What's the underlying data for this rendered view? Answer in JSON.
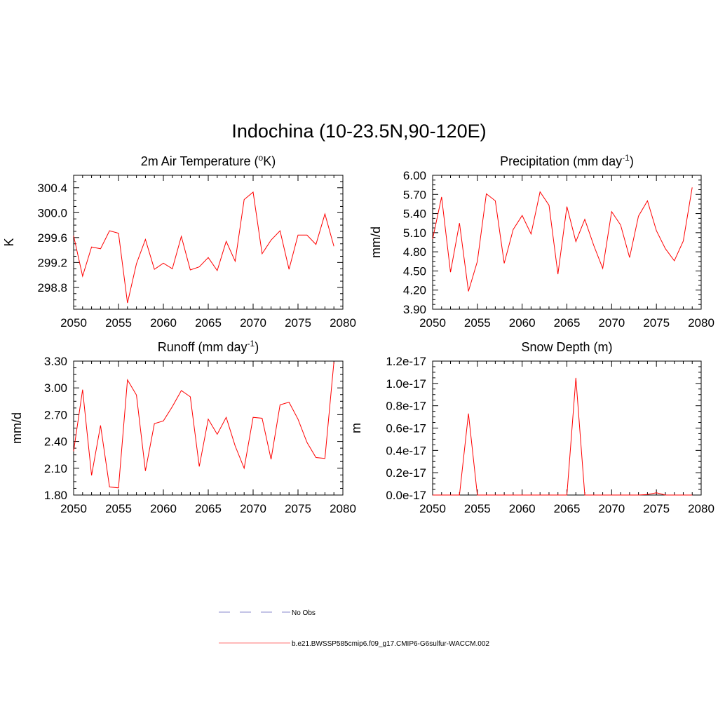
{
  "figure": {
    "title": "Indochina (10-23.5N,90-120E)"
  },
  "colors": {
    "series": "#ff0000",
    "no_obs": "#a0a0d8",
    "legend_model": "#ff9090",
    "axis": "#000000"
  },
  "legend": {
    "entries": [
      {
        "label": "No Obs",
        "style": "dashed",
        "color": "#a0a0d8"
      },
      {
        "label": "b.e21.BWSSP585cmip6.f09_g17.CMIP6-G6sulfur-WACCM.002",
        "style": "solid",
        "color": "#ff9090"
      }
    ]
  },
  "chart_data": [
    {
      "type": "line",
      "id": "temp",
      "title": "2m Air Temperature (",
      "title_sup": "o",
      "title_after": "K)",
      "ylabel": "K",
      "xlim": [
        2050,
        2080
      ],
      "ylim": [
        298.45,
        300.6
      ],
      "x_ticks": [
        2050,
        2055,
        2060,
        2065,
        2070,
        2075,
        2080
      ],
      "y_ticks": [
        298.8,
        299.2,
        299.6,
        300.0,
        300.4
      ],
      "y_tick_labels": [
        "298.8",
        "299.2",
        "299.6",
        "300.0",
        "300.4"
      ],
      "x": [
        2050,
        2051,
        2052,
        2053,
        2054,
        2055,
        2056,
        2057,
        2058,
        2059,
        2060,
        2061,
        2062,
        2063,
        2064,
        2065,
        2066,
        2067,
        2068,
        2069,
        2070,
        2071,
        2072,
        2073,
        2074,
        2075,
        2076,
        2077,
        2078,
        2079
      ],
      "values": [
        299.63,
        298.98,
        299.45,
        299.42,
        299.71,
        299.67,
        298.55,
        299.18,
        299.57,
        299.09,
        299.19,
        299.1,
        299.62,
        299.08,
        299.13,
        299.28,
        299.07,
        299.54,
        299.22,
        300.21,
        300.33,
        299.34,
        299.56,
        299.71,
        299.09,
        299.64,
        299.64,
        299.49,
        299.98,
        299.46
      ]
    },
    {
      "type": "line",
      "id": "precip",
      "title": "Precipitation (mm day",
      "title_sup": "-1",
      "title_after": ")",
      "ylabel": "mm/d",
      "xlim": [
        2050,
        2080
      ],
      "ylim": [
        3.9,
        6.0
      ],
      "x_ticks": [
        2050,
        2055,
        2060,
        2065,
        2070,
        2075,
        2080
      ],
      "y_ticks": [
        3.9,
        4.2,
        4.5,
        4.8,
        5.1,
        5.4,
        5.7,
        6.0
      ],
      "y_tick_labels": [
        "3.90",
        "4.20",
        "4.50",
        "4.80",
        "5.10",
        "5.40",
        "5.70",
        "6.00"
      ],
      "x": [
        2050,
        2051,
        2052,
        2053,
        2054,
        2055,
        2056,
        2057,
        2058,
        2059,
        2060,
        2061,
        2062,
        2063,
        2064,
        2065,
        2066,
        2067,
        2068,
        2069,
        2070,
        2071,
        2072,
        2073,
        2074,
        2075,
        2076,
        2077,
        2078,
        2079
      ],
      "values": [
        5.0,
        5.66,
        4.48,
        5.25,
        4.18,
        4.65,
        5.71,
        5.6,
        4.62,
        5.15,
        5.37,
        5.08,
        5.74,
        5.53,
        4.45,
        5.51,
        4.96,
        5.31,
        4.9,
        4.54,
        5.43,
        5.22,
        4.71,
        5.36,
        5.6,
        5.13,
        4.85,
        4.66,
        4.97,
        5.81
      ]
    },
    {
      "type": "line",
      "id": "runoff",
      "title": "Runoff (mm day",
      "title_sup": "-1",
      "title_after": ")",
      "ylabel": "mm/d",
      "xlim": [
        2050,
        2080
      ],
      "ylim": [
        1.8,
        3.3
      ],
      "x_ticks": [
        2050,
        2055,
        2060,
        2065,
        2070,
        2075,
        2080
      ],
      "y_ticks": [
        1.8,
        2.1,
        2.4,
        2.7,
        3.0,
        3.3
      ],
      "y_tick_labels": [
        "1.80",
        "2.10",
        "2.40",
        "2.70",
        "3.00",
        "3.30"
      ],
      "x": [
        2050,
        2051,
        2052,
        2053,
        2054,
        2055,
        2056,
        2057,
        2058,
        2059,
        2060,
        2061,
        2062,
        2063,
        2064,
        2065,
        2066,
        2067,
        2068,
        2069,
        2070,
        2071,
        2072,
        2073,
        2074,
        2075,
        2076,
        2077,
        2078,
        2079
      ],
      "values": [
        2.29,
        2.98,
        2.02,
        2.58,
        1.89,
        1.88,
        3.09,
        2.92,
        2.07,
        2.6,
        2.63,
        2.79,
        2.97,
        2.9,
        2.12,
        2.65,
        2.48,
        2.67,
        2.35,
        2.1,
        2.67,
        2.66,
        2.2,
        2.81,
        2.84,
        2.65,
        2.39,
        2.22,
        2.21,
        3.29
      ]
    },
    {
      "type": "line",
      "id": "snow",
      "title": "Snow Depth (m)",
      "title_sup": "",
      "title_after": "",
      "ylabel": "m",
      "xlim": [
        2050,
        2080
      ],
      "ylim": [
        0,
        1.2
      ],
      "y_unit": "1e-17",
      "x_ticks": [
        2050,
        2055,
        2060,
        2065,
        2070,
        2075,
        2080
      ],
      "y_ticks": [
        0,
        0.2,
        0.4,
        0.6,
        0.8,
        1.0,
        1.2
      ],
      "y_tick_labels": [
        "0.0e-17",
        "0.2e-17",
        "0.4e-17",
        "0.6e-17",
        "0.8e-17",
        "1.0e-17",
        "1.2e-17"
      ],
      "x": [
        2050,
        2051,
        2052,
        2053,
        2054,
        2055,
        2056,
        2057,
        2058,
        2059,
        2060,
        2061,
        2062,
        2063,
        2064,
        2065,
        2066,
        2067,
        2068,
        2069,
        2070,
        2071,
        2072,
        2073,
        2074,
        2075,
        2076,
        2077,
        2078,
        2079
      ],
      "values": [
        0,
        0,
        0,
        0,
        0.73,
        0,
        0,
        0,
        0,
        0,
        0,
        0,
        0,
        0,
        0,
        0,
        1.05,
        0,
        0,
        0,
        0,
        0,
        0,
        0,
        0.005,
        0.02,
        0,
        0,
        0,
        0
      ]
    }
  ]
}
